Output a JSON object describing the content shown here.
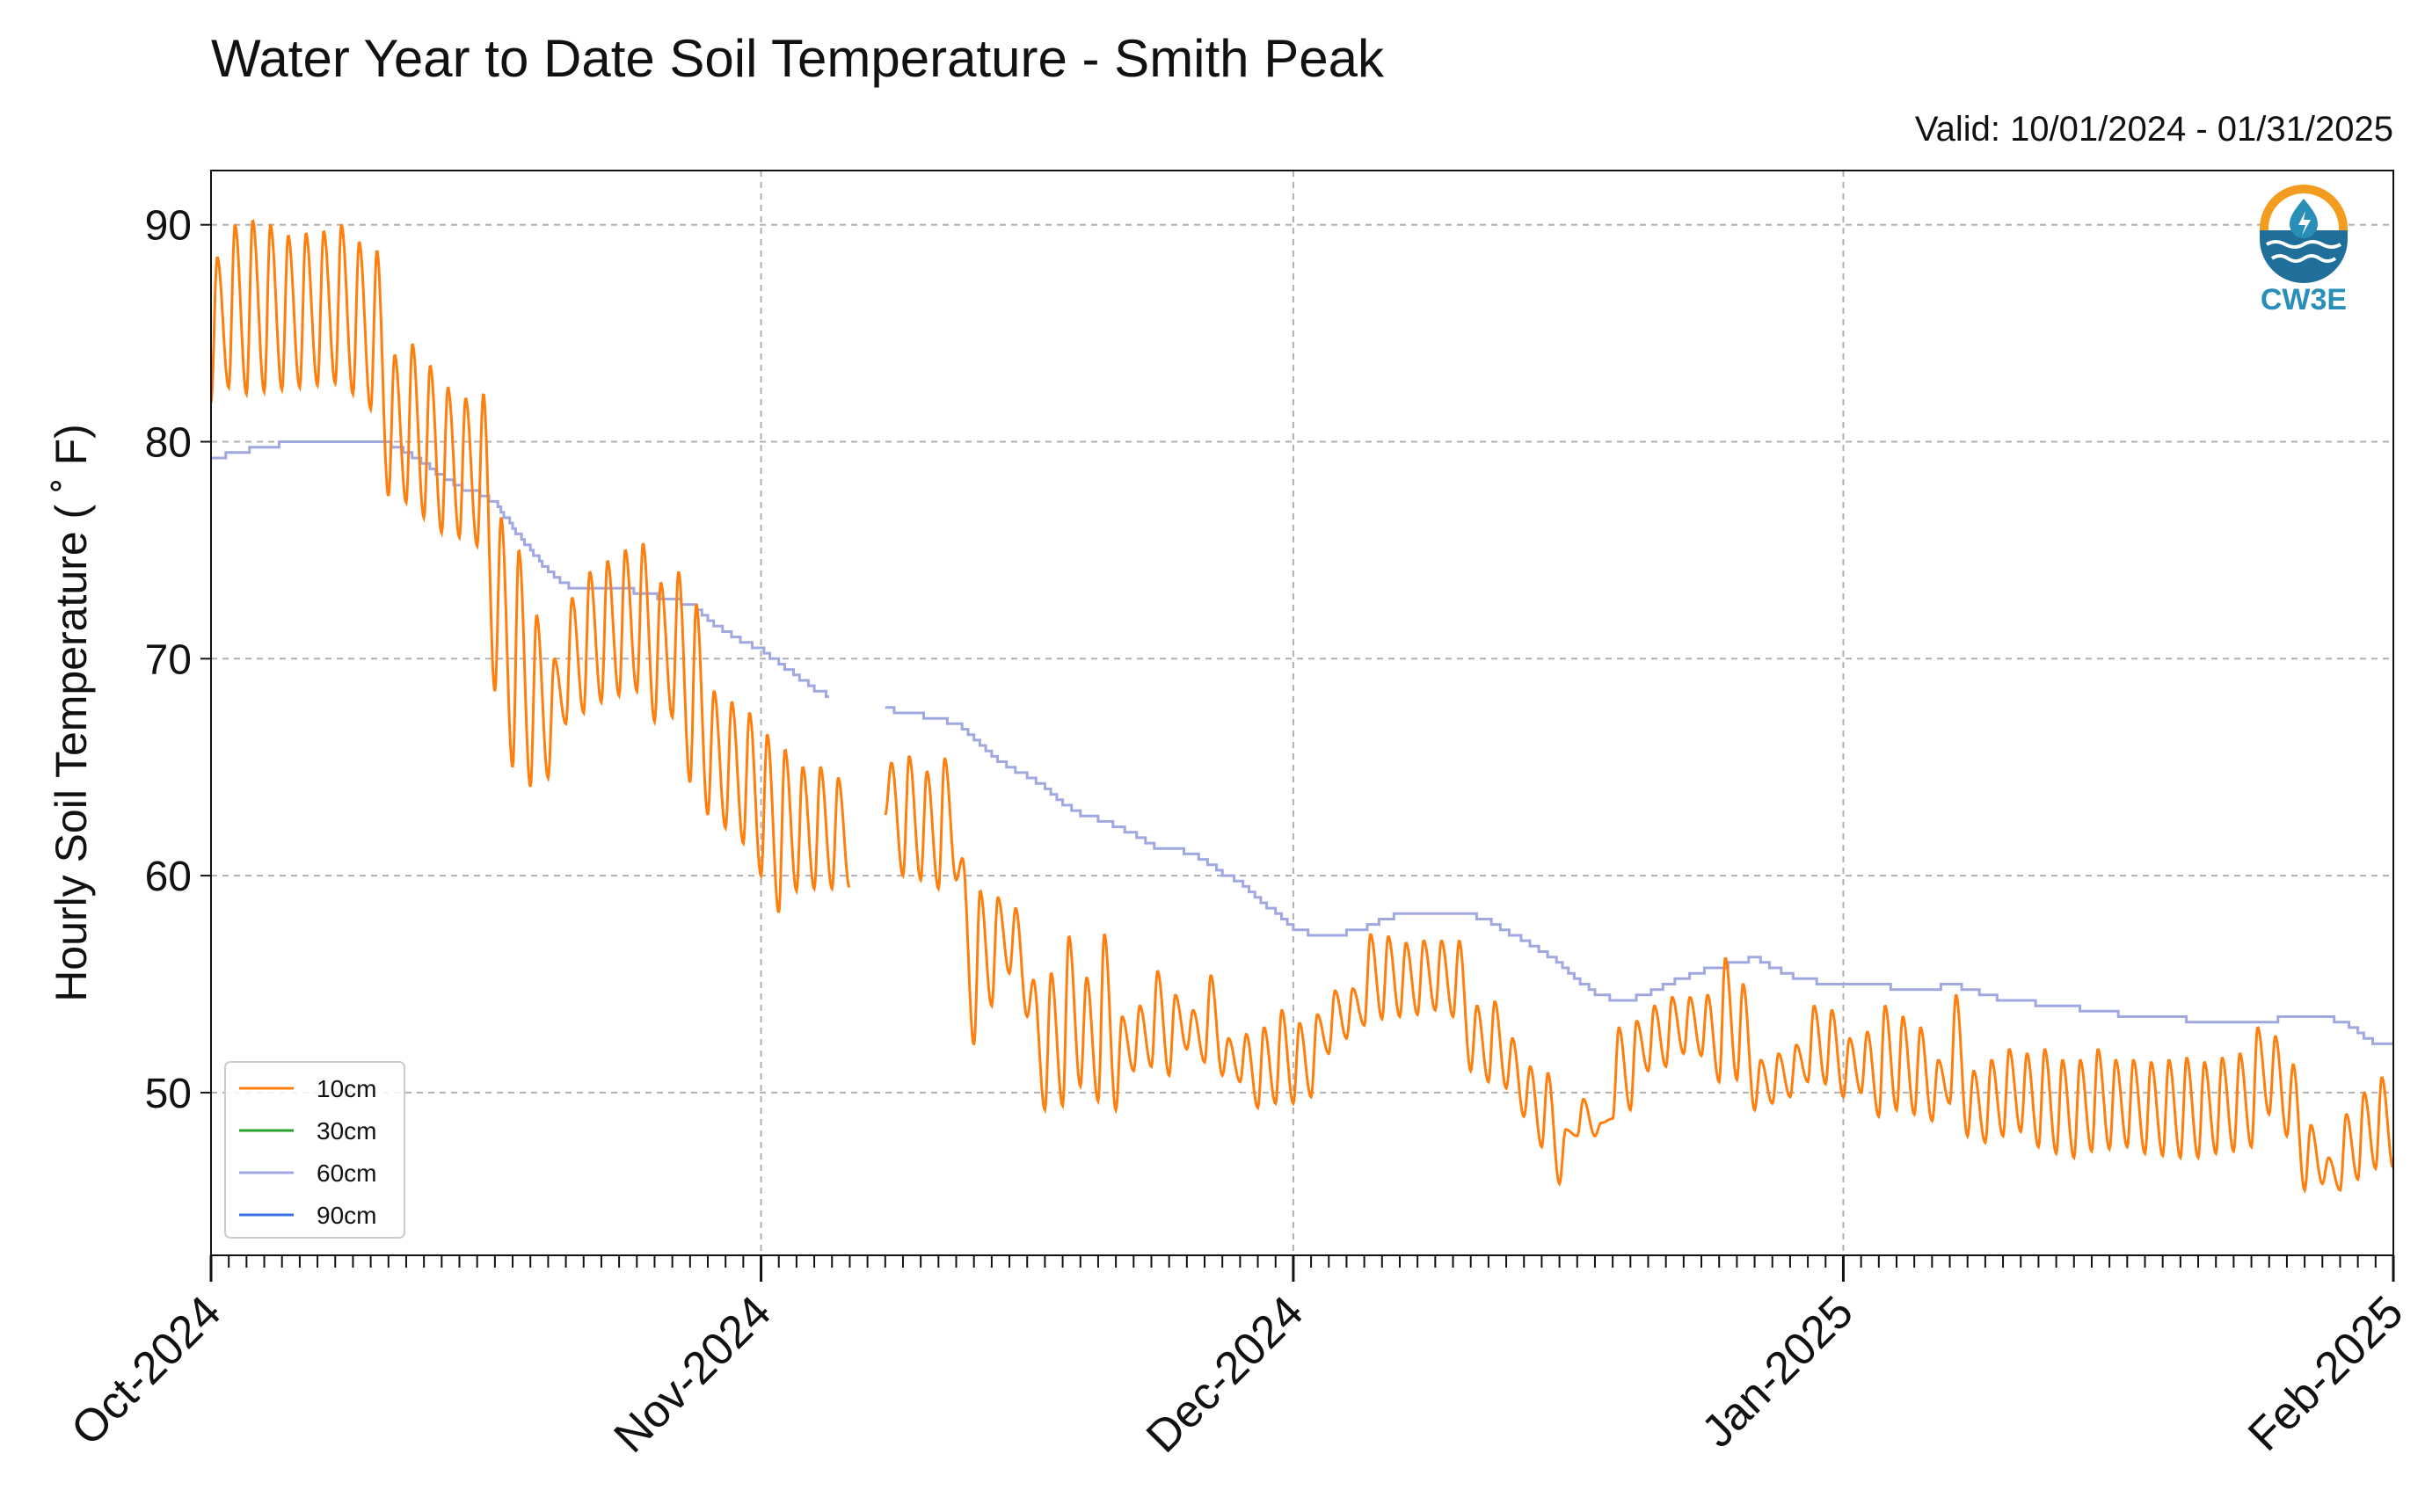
{
  "chart_data": {
    "type": "line",
    "title": "Water Year to Date Soil Temperature - Smith Peak",
    "valid_text": "Valid: 10/01/2024 - 01/31/2025",
    "ylabel": "Hourly Soil Temperature ( ˚ F)",
    "xlabel": "",
    "x_range": [
      "2024-10-01",
      "2025-02-01"
    ],
    "ylim": [
      42.5,
      92.5
    ],
    "yticks": [
      50,
      60,
      70,
      80,
      90
    ],
    "xtick_labels": [
      "Oct-2024",
      "Nov-2024",
      "Dec-2024",
      "Jan-2025",
      "Feb-2025"
    ],
    "grid": true,
    "legend_position": "lower-left",
    "logo_text": "CW3E",
    "series": [
      {
        "name": "10cm",
        "color": "#ff7f0e",
        "daily_high": [
          88.5,
          90.0,
          90.2,
          90.0,
          89.5,
          89.6,
          89.7,
          90.0,
          89.2,
          88.8,
          84.0,
          84.5,
          83.5,
          82.5,
          82.0,
          82.2,
          76.5,
          75.0,
          72.0,
          70.0,
          72.8,
          74.0,
          74.5,
          75.0,
          75.3,
          73.5,
          74.0,
          72.5,
          68.5,
          68.0,
          67.5,
          66.5,
          65.8,
          65.0,
          65.0,
          64.5,
          null,
          null,
          65.2,
          65.5,
          64.8,
          65.4,
          60.8,
          59.3,
          59.0,
          58.5,
          55.2,
          55.5,
          57.2,
          55.3,
          57.3,
          53.5,
          54.0,
          55.6,
          54.5,
          53.8,
          55.4,
          52.5,
          52.7,
          53.0,
          53.8,
          53.2,
          53.6,
          54.7,
          54.8,
          57.3,
          57.2,
          56.9,
          57.0,
          57.0,
          57.0,
          54.0,
          54.2,
          52.5,
          51.2,
          50.9,
          48.3,
          49.7,
          48.6,
          53.0,
          53.3,
          54.0,
          54.4,
          54.4,
          54.5,
          56.2,
          55.0,
          51.5,
          51.8,
          52.2,
          54.0,
          53.8,
          52.5,
          52.8,
          54.0,
          53.5,
          53.0,
          51.5,
          54.5,
          51.0,
          51.5,
          52.0,
          51.8,
          52.0,
          51.5,
          51.5,
          52.0,
          51.5,
          51.5,
          51.4,
          51.5,
          51.6,
          51.4,
          51.6,
          51.8,
          53.0,
          52.6,
          51.3,
          48.5,
          47.0,
          49.0,
          50.0,
          50.7
        ],
        "daily_low": [
          81.8,
          82.5,
          82.2,
          82.3,
          82.4,
          82.5,
          82.6,
          82.7,
          82.2,
          81.5,
          77.5,
          77.2,
          76.5,
          75.8,
          75.6,
          75.2,
          68.5,
          65.0,
          64.1,
          64.5,
          67.0,
          67.5,
          68.0,
          68.3,
          68.5,
          67.1,
          67.3,
          64.3,
          62.8,
          62.2,
          61.5,
          60.0,
          58.3,
          59.3,
          59.4,
          59.4,
          null,
          null,
          62.8,
          60.0,
          59.8,
          59.4,
          59.8,
          52.2,
          54.0,
          55.5,
          53.5,
          49.2,
          49.4,
          50.3,
          49.6,
          49.2,
          51.0,
          51.2,
          50.8,
          52.0,
          51.4,
          50.8,
          50.5,
          49.3,
          49.5,
          49.5,
          49.8,
          51.8,
          52.5,
          53.1,
          53.4,
          53.5,
          53.6,
          53.8,
          53.5,
          51.0,
          50.5,
          50.2,
          48.9,
          47.5,
          45.8,
          48.0,
          48.0,
          48.8,
          49.2,
          51.0,
          51.2,
          51.8,
          51.7,
          50.5,
          50.6,
          49.2,
          49.5,
          49.8,
          50.5,
          50.4,
          49.8,
          50.0,
          48.9,
          49.2,
          49.0,
          48.7,
          49.5,
          48.0,
          47.7,
          48.0,
          48.2,
          47.5,
          47.2,
          47.0,
          47.3,
          47.4,
          47.5,
          47.2,
          47.1,
          47.0,
          47.0,
          47.2,
          47.3,
          47.5,
          49.0,
          48.0,
          45.5,
          45.8,
          45.5,
          46.0,
          46.5
        ]
      },
      {
        "name": "30cm",
        "color": "#2ca02c",
        "values": []
      },
      {
        "name": "60cm",
        "color": "#a0a8e0",
        "daily": [
          79.3,
          79.4,
          79.6,
          79.8,
          79.9,
          80.0,
          80.0,
          80.1,
          80.1,
          80.0,
          79.9,
          79.5,
          79.0,
          78.4,
          77.9,
          77.7,
          77.2,
          76.0,
          75.0,
          74.0,
          73.4,
          73.2,
          73.2,
          73.2,
          73.1,
          72.9,
          72.7,
          72.5,
          71.8,
          71.2,
          70.8,
          70.4,
          69.8,
          69.2,
          68.6,
          68.2,
          null,
          null,
          67.7,
          67.5,
          67.4,
          67.2,
          67.0,
          66.3,
          65.5,
          65.0,
          64.6,
          64.1,
          63.3,
          62.8,
          62.6,
          62.3,
          61.9,
          61.4,
          61.2,
          61.1,
          60.7,
          60.1,
          59.7,
          58.9,
          58.3,
          57.6,
          57.3,
          57.2,
          57.4,
          57.6,
          58.0,
          58.2,
          58.3,
          58.3,
          58.3,
          58.2,
          57.9,
          57.4,
          57.0,
          56.5,
          56.0,
          55.2,
          54.6,
          54.3,
          54.3,
          54.6,
          55.0,
          55.3,
          55.6,
          55.8,
          56.0,
          56.2,
          55.8,
          55.4,
          55.2,
          55.0,
          55.0,
          55.1,
          55.0,
          54.8,
          54.7,
          54.8,
          55.0,
          54.8,
          54.5,
          54.3,
          54.2,
          54.1,
          54.0,
          53.9,
          53.8,
          53.7,
          53.5,
          53.4,
          53.4,
          53.4,
          53.3,
          53.3,
          53.3,
          53.3,
          53.3,
          53.5,
          53.6,
          53.5,
          53.3,
          52.8,
          52.2,
          52.2
        ]
      },
      {
        "name": "90cm",
        "color": "#3a6fe0",
        "values": []
      }
    ]
  }
}
